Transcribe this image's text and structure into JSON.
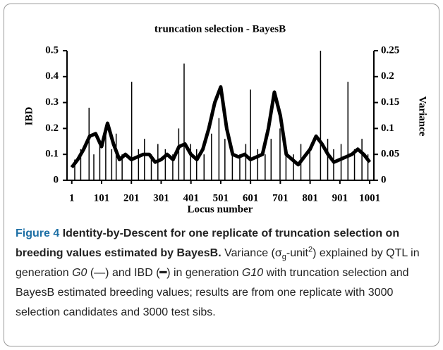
{
  "chart_data": {
    "type": "line",
    "title": "truncation selection - BayesB",
    "xlabel": "Locus number",
    "ylabel": "IBD",
    "y2label": "Variance",
    "xlim": [
      -15,
      1015
    ],
    "xticks": [
      1,
      101,
      201,
      301,
      401,
      501,
      601,
      701,
      801,
      901,
      1001
    ],
    "ylim": [
      0,
      0.5
    ],
    "yticks": [
      0,
      0.1,
      0.2,
      0.3,
      0.4,
      0.5
    ],
    "y2lim": [
      0,
      0.25
    ],
    "y2ticks": [
      0,
      0.05,
      0.1,
      0.15,
      0.2,
      0.25
    ],
    "series": [
      {
        "color": "#000000",
        "style": "thick",
        "x": [
          1,
          21,
          41,
          61,
          81,
          101,
          121,
          141,
          161,
          181,
          201,
          221,
          241,
          261,
          281,
          301,
          321,
          341,
          361,
          381,
          401,
          421,
          441,
          461,
          481,
          501,
          521,
          541,
          561,
          581,
          601,
          621,
          641,
          661,
          681,
          701,
          721,
          741,
          761,
          781,
          801,
          821,
          841,
          861,
          881,
          901,
          921,
          941,
          961,
          981,
          1001
        ],
        "values": [
          0.05,
          0.08,
          0.12,
          0.17,
          0.18,
          0.13,
          0.22,
          0.14,
          0.08,
          0.1,
          0.08,
          0.09,
          0.1,
          0.1,
          0.07,
          0.08,
          0.1,
          0.08,
          0.13,
          0.14,
          0.1,
          0.08,
          0.12,
          0.2,
          0.3,
          0.36,
          0.2,
          0.1,
          0.09,
          0.1,
          0.08,
          0.09,
          0.1,
          0.2,
          0.34,
          0.25,
          0.1,
          0.08,
          0.06,
          0.09,
          0.12,
          0.17,
          0.14,
          0.1,
          0.07,
          0.08,
          0.09,
          0.1,
          0.12,
          0.1,
          0.07
        ]
      },
      {
        "color": "#000000",
        "style": "spikes",
        "axis": "y2",
        "x": [
          11,
          31,
          59,
          75,
          95,
          115,
          135,
          150,
          170,
          202,
          225,
          245,
          268,
          290,
          315,
          340,
          360,
          378,
          400,
          420,
          445,
          470,
          495,
          515,
          540,
          565,
          585,
          601,
          625,
          650,
          670,
          700,
          720,
          745,
          770,
          800,
          836,
          860,
          880,
          905,
          928,
          950,
          975,
          995
        ],
        "values": [
          0.04,
          0.06,
          0.14,
          0.05,
          0.07,
          0.1,
          0.06,
          0.09,
          0.05,
          0.19,
          0.06,
          0.08,
          0.05,
          0.07,
          0.06,
          0.05,
          0.1,
          0.225,
          0.07,
          0.06,
          0.05,
          0.09,
          0.12,
          0.08,
          0.06,
          0.05,
          0.07,
          0.175,
          0.06,
          0.05,
          0.08,
          0.1,
          0.06,
          0.05,
          0.07,
          0.06,
          0.25,
          0.08,
          0.06,
          0.07,
          0.19,
          0.06,
          0.08,
          0.05
        ]
      }
    ]
  },
  "caption": {
    "label": "Figure 4",
    "title": "Identity-by-Descent for one replicate of truncation selection on breeding values estimated by BayesB.",
    "body": [
      "Variance (σ",
      "g",
      "-unit",
      "2",
      ") explained by QTL in generation ",
      "G0",
      " (—) and IBD (",
      "━",
      ") in generation ",
      "G10",
      " with truncation selection and BayesB estimated breeding values; results are from one replicate with 3000 selection candidates and 3000 test sibs."
    ]
  }
}
